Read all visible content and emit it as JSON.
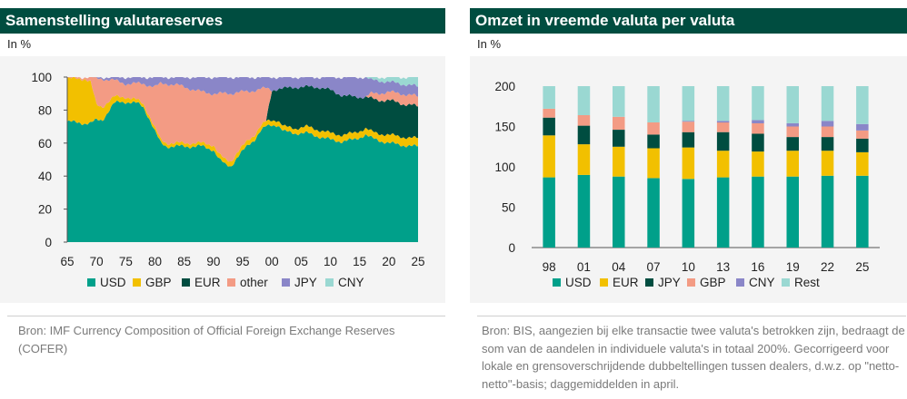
{
  "colors": {
    "USD": "#00a08a",
    "GBP": "#f2c000",
    "EUR": "#004d40",
    "other": "#f39b84",
    "JPY": "#8a86c8",
    "CNY": "#9ad8d2",
    "header_bg": "#004d40"
  },
  "left": {
    "title": "Samenstelling valutareserves",
    "unit": "In %",
    "source": "Bron: IMF Currency Composition of Official Foreign Exchange Reserves (COFER)"
  },
  "right": {
    "title": "Omzet in vreemde valuta per valuta",
    "unit": "In %",
    "source": "Bron: BIS, aangezien bij elke transactie twee valuta's betrokken zijn, bedraagt de som van de aandelen in individuele valuta's in totaal 200%. Gecorrigeerd voor lokale en grensoverschrijdende dubbeltellingen tussen dealers, d.w.z. op \"netto-netto\"-basis; daggemiddelden in april."
  },
  "chart_data": [
    {
      "type": "area",
      "title": "Samenstelling valutareserves",
      "ylabel": "In %",
      "ylim": [
        0,
        100
      ],
      "yticks": [
        0,
        20,
        40,
        60,
        80,
        100
      ],
      "xtick_labels": [
        "65",
        "70",
        "75",
        "80",
        "85",
        "90",
        "95",
        "00",
        "05",
        "10",
        "15",
        "20",
        "25"
      ],
      "x": [
        1965,
        1968,
        1969,
        1970,
        1971,
        1973,
        1974,
        1975,
        1977,
        1978,
        1979,
        1980,
        1981,
        1982,
        1984,
        1986,
        1988,
        1990,
        1991,
        1992,
        1993,
        1994,
        1995,
        1996,
        1997,
        1998,
        1999,
        2000,
        2001,
        2002,
        2004,
        2006,
        2008,
        2010,
        2012,
        2014,
        2016,
        2017,
        2018,
        2020,
        2022,
        2024,
        2025
      ],
      "series": [
        {
          "name": "USD",
          "values": [
            73,
            72,
            72,
            74,
            74,
            84,
            85,
            85,
            84,
            82,
            75,
            67,
            60,
            58,
            58,
            58,
            58,
            56,
            50,
            47,
            46,
            51,
            55,
            59,
            62,
            67,
            70,
            71,
            71,
            67,
            66,
            66,
            64,
            62,
            61,
            62,
            65,
            63,
            62,
            60,
            59,
            58,
            58
          ]
        },
        {
          "name": "GBP",
          "values": [
            26,
            27,
            25,
            9,
            8,
            4,
            3,
            3,
            2,
            2,
            2,
            2,
            2,
            2,
            2,
            2,
            2,
            3,
            3,
            3,
            3,
            3,
            3,
            3,
            3,
            3,
            3,
            3,
            3,
            3,
            3,
            4,
            4,
            4,
            4,
            4,
            4,
            4,
            4,
            5,
            5,
            5,
            5
          ]
        },
        {
          "name": "EUR",
          "values": [
            0,
            0,
            0,
            0,
            0,
            0,
            0,
            0,
            0,
            0,
            0,
            0,
            0,
            0,
            0,
            0,
            0,
            0,
            0,
            0,
            0,
            0,
            0,
            0,
            0,
            0,
            0,
            18,
            19,
            23,
            25,
            24,
            26,
            26,
            24,
            22,
            19,
            20,
            20,
            21,
            20,
            20,
            19
          ]
        },
        {
          "name": "other",
          "values": [
            1,
            1,
            3,
            16,
            17,
            10,
            9,
            8,
            10,
            12,
            18,
            25,
            34,
            36,
            35,
            33,
            31,
            31,
            37,
            40,
            41,
            37,
            33,
            29,
            27,
            23,
            20,
            0,
            0,
            0,
            0,
            0,
            0,
            0,
            0,
            0,
            0,
            3,
            4,
            5,
            6,
            6,
            6
          ]
        },
        {
          "name": "JPY",
          "values": [
            0,
            0,
            0,
            1,
            1,
            2,
            3,
            4,
            4,
            4,
            5,
            6,
            4,
            4,
            5,
            7,
            9,
            10,
            10,
            10,
            10,
            9,
            9,
            9,
            8,
            7,
            7,
            8,
            7,
            7,
            6,
            6,
            6,
            8,
            11,
            12,
            12,
            8,
            8,
            6,
            6,
            6,
            6
          ]
        },
        {
          "name": "CNY",
          "values": [
            0,
            0,
            0,
            0,
            0,
            0,
            0,
            0,
            0,
            0,
            0,
            0,
            0,
            0,
            0,
            0,
            0,
            0,
            0,
            0,
            0,
            0,
            0,
            0,
            0,
            0,
            0,
            0,
            0,
            0,
            0,
            0,
            0,
            0,
            0,
            0,
            0,
            2,
            2,
            3,
            4,
            5,
            6
          ]
        }
      ],
      "legend": [
        "USD",
        "GBP",
        "EUR",
        "other",
        "JPY",
        "CNY"
      ],
      "legend_position": "bottom"
    },
    {
      "type": "bar",
      "stacked": true,
      "title": "Omzet in vreemde valuta per valuta",
      "ylabel": "In %",
      "ylim": [
        0,
        200
      ],
      "yticks": [
        0,
        50,
        100,
        150,
        200
      ],
      "categories": [
        "98",
        "01",
        "04",
        "07",
        "10",
        "13",
        "16",
        "19",
        "22",
        "25"
      ],
      "series": [
        {
          "name": "USD",
          "values": [
            87,
            90,
            88,
            86,
            85,
            87,
            88,
            88,
            89,
            89
          ]
        },
        {
          "name": "EUR",
          "values": [
            52,
            38,
            37,
            37,
            39,
            33,
            31,
            32,
            31,
            29
          ]
        },
        {
          "name": "JPY",
          "values": [
            22,
            23,
            21,
            17,
            19,
            23,
            22,
            17,
            17,
            17
          ]
        },
        {
          "name": "GBP",
          "values": [
            11,
            13,
            16,
            15,
            13,
            12,
            13,
            13,
            13,
            10
          ]
        },
        {
          "name": "CNY",
          "values": [
            0,
            0,
            0,
            0,
            1,
            2,
            4,
            4,
            7,
            8
          ]
        },
        {
          "name": "Rest",
          "values": [
            28,
            36,
            38,
            45,
            43,
            43,
            42,
            46,
            43,
            47
          ]
        }
      ],
      "legend": [
        "USD",
        "EUR",
        "JPY",
        "GBP",
        "CNY",
        "Rest"
      ],
      "legend_position": "bottom"
    }
  ]
}
